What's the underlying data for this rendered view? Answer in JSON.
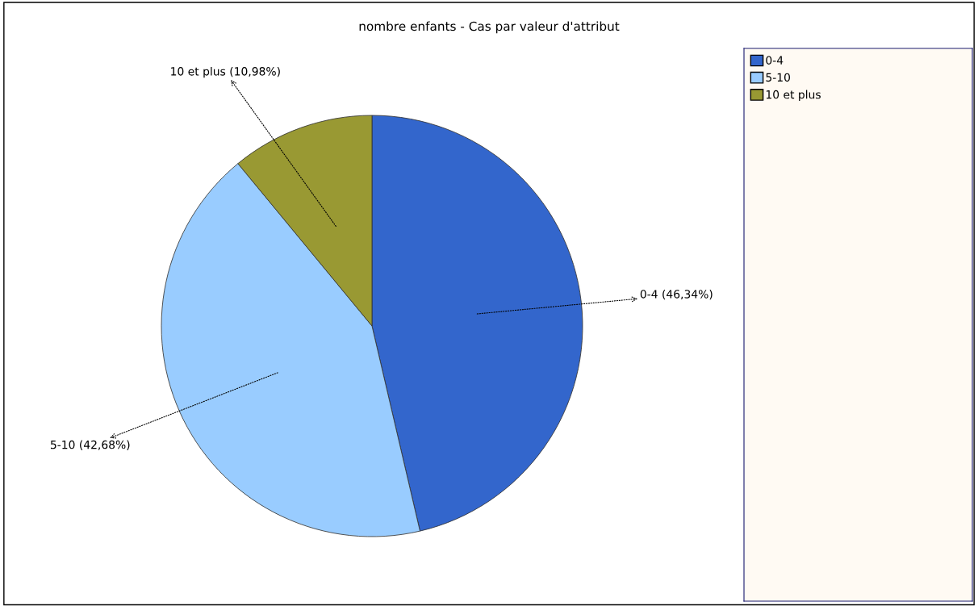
{
  "chart_data": {
    "type": "pie",
    "title": "nombre enfants - Cas par valeur d'attribut",
    "categories": [
      "0-4",
      "5-10",
      "10 et plus"
    ],
    "values": [
      46.34,
      42.68,
      10.98
    ],
    "colors": [
      "#3366cc",
      "#99ccff",
      "#999933"
    ],
    "value_labels": [
      "0-4 (46,34%)",
      "5-10 (42,68%)",
      "10 et plus (10,98%)"
    ],
    "legend": "right"
  }
}
